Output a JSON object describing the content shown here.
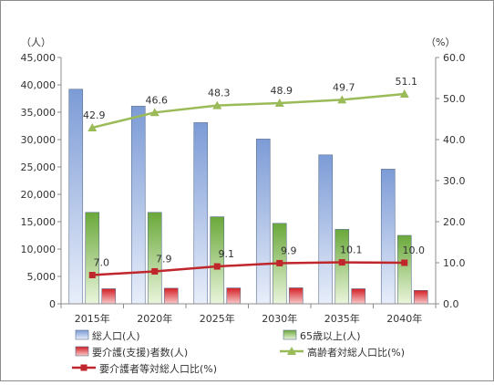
{
  "chart_data": {
    "type": "bar",
    "categories": [
      "2015年",
      "2020年",
      "2025年",
      "2030年",
      "2035年",
      "2040年"
    ],
    "left_axis": {
      "unit_label": "（人）",
      "ylim": [
        0,
        45000
      ],
      "ticks": [
        "0",
        "5,000",
        "10,000",
        "15,000",
        "20,000",
        "25,000",
        "30,000",
        "35,000",
        "40,000",
        "45,000"
      ],
      "tick_values": [
        0,
        5000,
        10000,
        15000,
        20000,
        25000,
        30000,
        35000,
        40000,
        45000
      ]
    },
    "right_axis": {
      "unit_label": "（%）",
      "ylim": [
        0,
        60
      ],
      "ticks": [
        "0.0",
        "10.0",
        "20.0",
        "30.0",
        "40.0",
        "50.0",
        "60.0"
      ],
      "tick_values": [
        0,
        10,
        20,
        30,
        40,
        50,
        60
      ]
    },
    "bar_series": [
      {
        "name": "総人口(人)",
        "axis": "left",
        "color": "#8eaadb",
        "values": [
          39200,
          36100,
          33100,
          30100,
          27200,
          24600
        ]
      },
      {
        "name": "65歳以上(人)",
        "axis": "left",
        "color": "#8fc060",
        "values": [
          16700,
          16700,
          15900,
          14700,
          13600,
          12500
        ]
      },
      {
        "name": "要介護(支援)者数(人)",
        "axis": "left",
        "color": "#e0262a",
        "values": [
          2750,
          2850,
          2900,
          2920,
          2750,
          2450
        ]
      }
    ],
    "line_series": [
      {
        "name": "高齢者対総人口比(%)",
        "axis": "right",
        "color": "#9bbb59",
        "marker": "triangle",
        "values": [
          42.9,
          46.6,
          48.3,
          48.9,
          49.7,
          51.1
        ],
        "labels": [
          "42.9",
          "46.6",
          "48.3",
          "48.9",
          "49.7",
          "51.1"
        ]
      },
      {
        "name": "要介護者等対総人口比(%)",
        "axis": "right",
        "color": "#c0272d",
        "marker": "square",
        "values": [
          7.0,
          7.9,
          9.1,
          9.9,
          10.1,
          10.0
        ],
        "labels": [
          "7.0",
          "7.9",
          "9.1",
          "9.9",
          "10.1",
          "10.0"
        ]
      }
    ],
    "grid": false,
    "legend_position": "bottom"
  }
}
